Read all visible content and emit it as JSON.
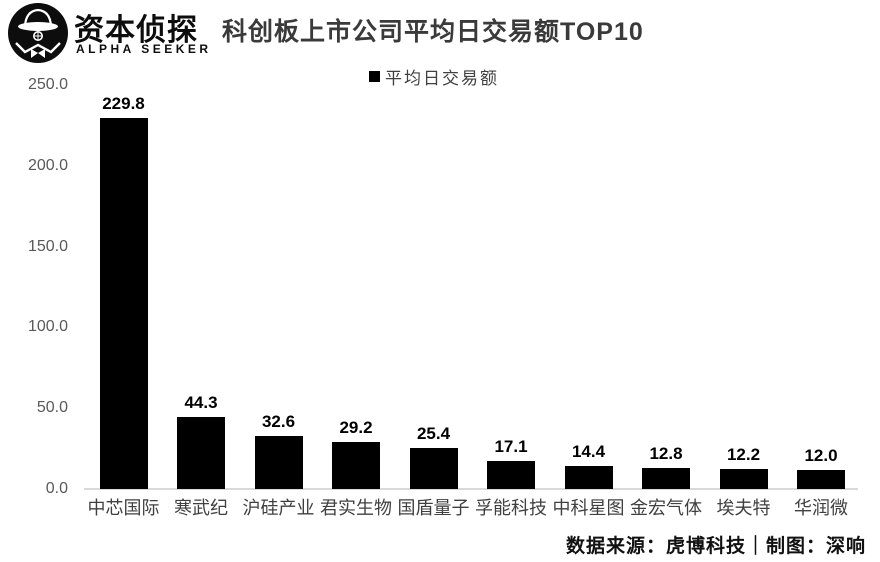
{
  "logo": {
    "name_cn": "资本侦探",
    "name_en": "ALPHA SEEKER"
  },
  "footer": {
    "text": "数据来源：虎博科技｜制图：深响"
  },
  "colors": {
    "bar": "#000000",
    "axis_line": "#d9d9d9",
    "tick_text": "#595959"
  },
  "chart_data": {
    "type": "bar",
    "title": "科创板上市公司平均日交易额TOP10",
    "legend": "平均日交易额",
    "legend_position": "top-center",
    "categories": [
      "中芯国际",
      "寒武纪",
      "沪硅产业",
      "君实生物",
      "国盾量子",
      "孚能科技",
      "中科星图",
      "金宏气体",
      "埃夫特",
      "华润微"
    ],
    "values": [
      229.8,
      44.3,
      32.6,
      29.2,
      25.4,
      17.1,
      14.4,
      12.8,
      12.2,
      12.0
    ],
    "value_labels": [
      "229.8",
      "44.3",
      "32.6",
      "29.2",
      "25.4",
      "17.1",
      "14.4",
      "12.8",
      "12.2",
      "12.0"
    ],
    "ylim": [
      0,
      250
    ],
    "yticks": [
      0,
      50,
      100,
      150,
      200,
      250
    ],
    "ytick_labels": [
      "0.0",
      "50.0",
      "100.0",
      "150.0",
      "200.0",
      "250.0"
    ],
    "grid": false,
    "xlabel": "",
    "ylabel": ""
  }
}
